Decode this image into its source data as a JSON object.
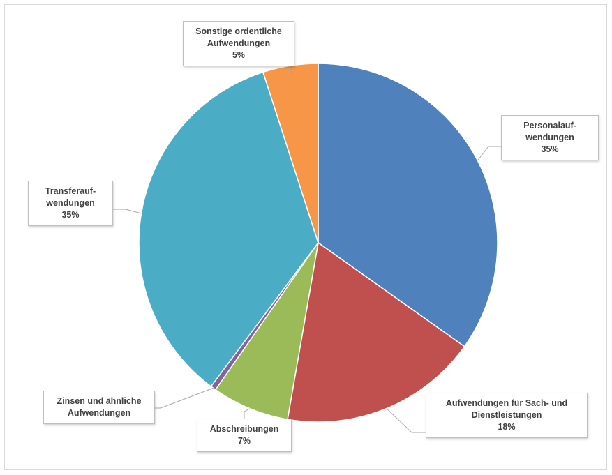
{
  "chart_data": {
    "type": "pie",
    "start_angle_deg": 0,
    "direction": "clockwise",
    "slices": [
      {
        "label_lines": [
          "Personalauf-",
          "wendungen"
        ],
        "pct_label": "35%",
        "value": 35,
        "color": "#4f81bd"
      },
      {
        "label_lines": [
          "Aufwendungen für Sach- und",
          "Dienstleistungen"
        ],
        "pct_label": "18%",
        "value": 18,
        "color": "#c0504d"
      },
      {
        "label_lines": [
          "Abschreibungen"
        ],
        "pct_label": "7%",
        "value": 7,
        "color": "#9bbb59"
      },
      {
        "label_lines": [
          "Zinsen und ähnliche",
          "Aufwendungen"
        ],
        "pct_label": "",
        "value": 0.5,
        "color": "#8064a2"
      },
      {
        "label_lines": [
          "Transferauf-",
          "wendungen"
        ],
        "pct_label": "35%",
        "value": 35,
        "color": "#4bacc6"
      },
      {
        "label_lines": [
          "Sonstige ordentliche",
          "Aufwendungen"
        ],
        "pct_label": "5%",
        "value": 5,
        "color": "#f79646"
      }
    ],
    "legend": "none",
    "title": ""
  }
}
